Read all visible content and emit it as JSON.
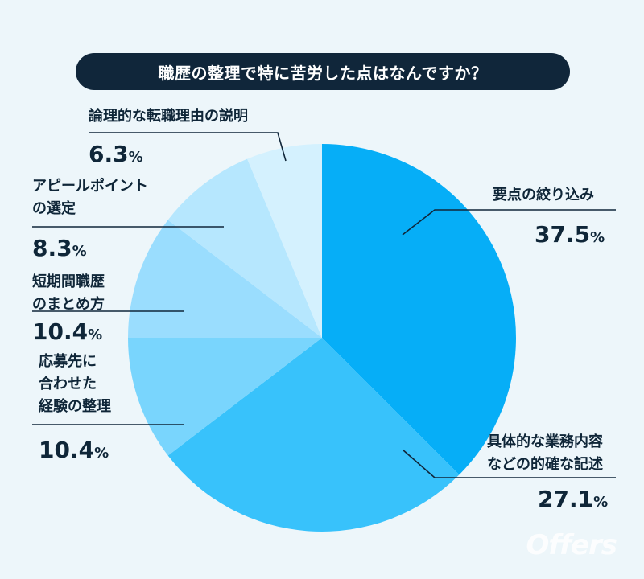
{
  "title": "職歴の整理で特に苦労した点はなんですか？",
  "watermark": "Offers",
  "chart_data": {
    "type": "pie",
    "title": "職歴の整理で特に苦労した点はなんですか？",
    "unit": "%",
    "start": "12 o'clock, clockwise",
    "categories": [
      "要点の絞り込み",
      "具体的な業務内容などの的確な記述",
      "応募先に合わせた経験の整理",
      "短期間職歴のまとめ方",
      "アピールポイントの選定",
      "論理的な転職理由の説明"
    ],
    "values": [
      37.5,
      27.1,
      10.4,
      10.4,
      8.3,
      6.3
    ],
    "colors": [
      "#06aef7",
      "#38c2fb",
      "#79d5fd",
      "#9addfe",
      "#b6e7fe",
      "#d4f1fe"
    ],
    "labels": [
      {
        "lines": [
          "要点の絞り込み"
        ],
        "value": "37.5"
      },
      {
        "lines": [
          "具体的な業務内容",
          "などの的確な記述"
        ],
        "value": "27.1"
      },
      {
        "lines": [
          "応募先に",
          "合わせた",
          "経験の整理"
        ],
        "value": "10.4"
      },
      {
        "lines": [
          "短期間職歴",
          "のまとめ方"
        ],
        "value": "10.4"
      },
      {
        "lines": [
          "アピールポイント",
          "の選定"
        ],
        "value": "8.3"
      },
      {
        "lines": [
          "論理的な転職理由の説明"
        ],
        "value": "6.3"
      }
    ]
  }
}
